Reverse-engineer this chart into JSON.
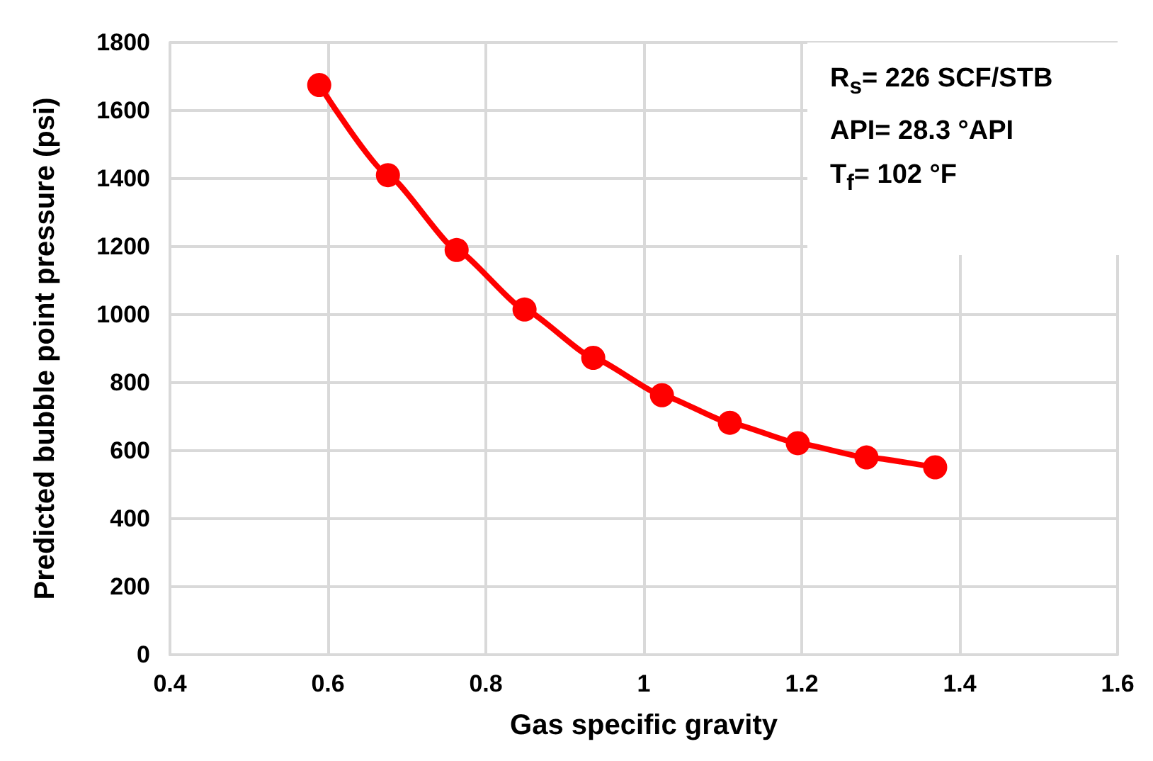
{
  "chart_data": {
    "type": "line",
    "xlabel": "Gas specific gravity",
    "ylabel": "Predicted bubble point pressure (psi)",
    "x": [
      0.589,
      0.676,
      0.763,
      0.849,
      0.936,
      1.023,
      1.109,
      1.195,
      1.282,
      1.369
    ],
    "series": [
      {
        "color": "#ff0000",
        "values": [
          1675,
          1410,
          1190,
          1015,
          873,
          763,
          682,
          622,
          580,
          551
        ]
      }
    ],
    "xlim": [
      0.4,
      1.6
    ],
    "xticks": [
      0.4,
      0.6,
      0.8,
      1,
      1.2,
      1.4,
      1.6
    ],
    "ylim": [
      0,
      1800
    ],
    "yticks": [
      0,
      200,
      400,
      600,
      800,
      1000,
      1200,
      1400,
      1600,
      1800
    ],
    "grid": true,
    "marker": "circle",
    "line_style": "solid",
    "annotations": [
      "R$_{s}$= 226 SCF/STB",
      "API= 28.3 °API",
      "T$_{f}$= 102 °F"
    ]
  }
}
